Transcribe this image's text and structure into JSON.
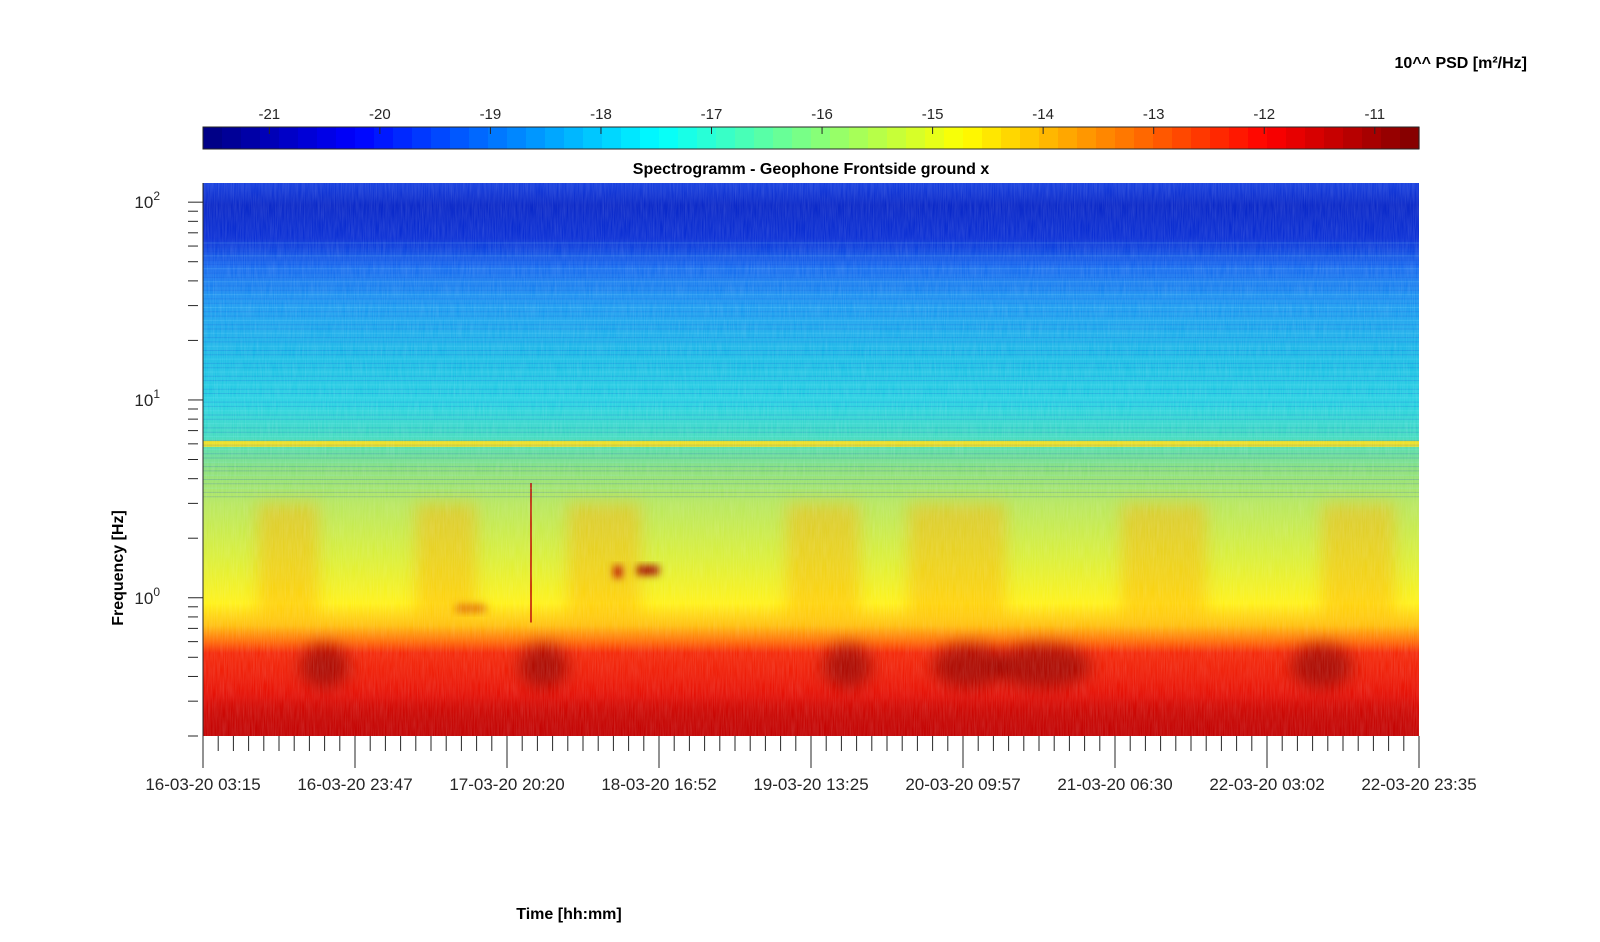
{
  "chart_data": {
    "type": "heatmap",
    "title": "Spectrogramm - Geophone Frontside ground x",
    "xlabel": "Time [hh:mm]",
    "ylabel": "Frequency [Hz]",
    "x_ticks": [
      "16-03-20 03:15",
      "16-03-20 23:47",
      "17-03-20 20:20",
      "18-03-20 16:52",
      "19-03-20 13:25",
      "20-03-20 09:57",
      "21-03-20 06:30",
      "22-03-20 03:02",
      "22-03-20 23:35"
    ],
    "y_scale": "log",
    "y_ticks": [
      {
        "base": "10",
        "exp": "0",
        "value": 1
      },
      {
        "base": "10",
        "exp": "1",
        "value": 10
      },
      {
        "base": "10",
        "exp": "2",
        "value": 100
      }
    ],
    "ylim": [
      0.2,
      125
    ],
    "colorbar": {
      "label": "10^^ PSD [m²/Hz]",
      "ticks": [
        "-21",
        "-20",
        "-19",
        "-18",
        "-17",
        "-16",
        "-15",
        "-14",
        "-13",
        "-12",
        "-11"
      ],
      "range": [
        -21.6,
        -10.6
      ],
      "colormap": "jet"
    },
    "features": {
      "persistent_line_hz": 6.0,
      "high_band": {
        "range_hz": [
          50,
          125
        ],
        "log10_psd": -20.5
      },
      "low_band": {
        "range_hz": [
          0.2,
          0.75
        ],
        "log10_psd": -12
      }
    }
  }
}
